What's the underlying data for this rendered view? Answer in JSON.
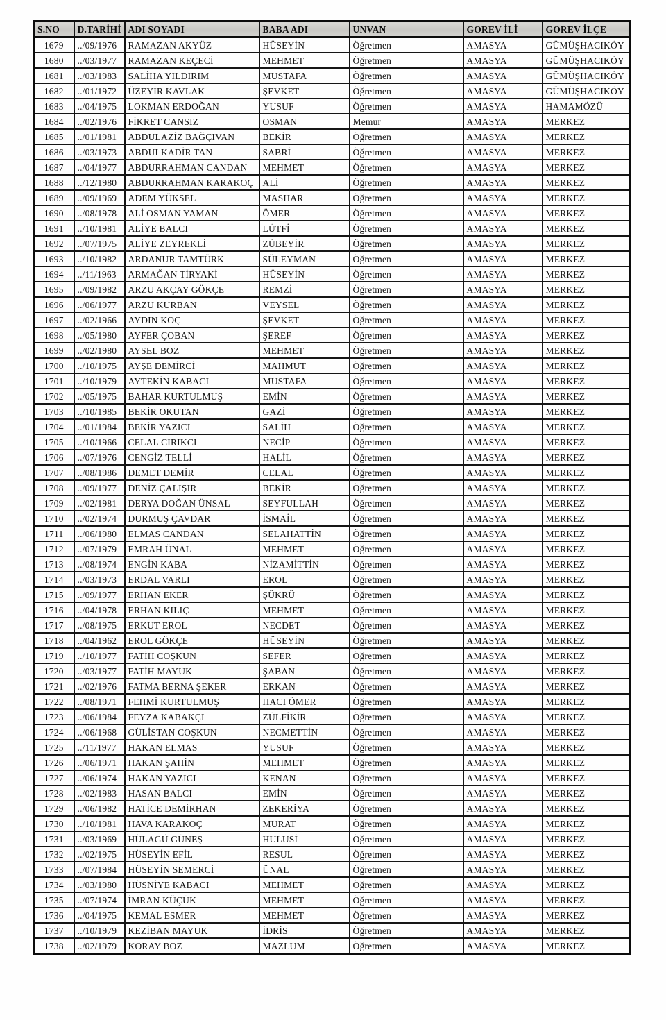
{
  "colors": {
    "ink": "#141414",
    "border": "#151515",
    "header_bg": "#d0cfcb",
    "page_bg": "#fefefe"
  },
  "table": {
    "columns": [
      {
        "key": "sno",
        "label": "S.NO"
      },
      {
        "key": "date",
        "label": "D.TARİHİ"
      },
      {
        "key": "name",
        "label": "ADI SOYADI"
      },
      {
        "key": "father",
        "label": "BABA ADI"
      },
      {
        "key": "title",
        "label": "UNVAN"
      },
      {
        "key": "province",
        "label": "GOREV İLİ"
      },
      {
        "key": "district",
        "label": "GOREV İLÇE"
      }
    ],
    "rows": [
      [
        "1679",
        "../09/1976",
        "RAMAZAN AKYÜZ",
        "HÜSEYİN",
        "Öğretmen",
        "AMASYA",
        "GÜMÜŞHACIKÖY"
      ],
      [
        "1680",
        "../03/1977",
        "RAMAZAN KEÇECİ",
        "MEHMET",
        "Öğretmen",
        "AMASYA",
        "GÜMÜŞHACIKÖY"
      ],
      [
        "1681",
        "../03/1983",
        "SALİHA YILDIRIM",
        "MUSTAFA",
        "Öğretmen",
        "AMASYA",
        "GÜMÜŞHACIKÖY"
      ],
      [
        "1682",
        "../01/1972",
        "ÜZEYİR KAVLAK",
        "ŞEVKET",
        "Öğretmen",
        "AMASYA",
        "GÜMÜŞHACIKÖY"
      ],
      [
        "1683",
        "../04/1975",
        "LOKMAN ERDOĞAN",
        "YUSUF",
        "Öğretmen",
        "AMASYA",
        "HAMAMÖZÜ"
      ],
      [
        "1684",
        "../02/1976",
        "FİKRET CANSIZ",
        "OSMAN",
        "Memur",
        "AMASYA",
        "MERKEZ"
      ],
      [
        "1685",
        "../01/1981",
        "ABDULAZİZ BAĞÇIVAN",
        "BEKİR",
        "Öğretmen",
        "AMASYA",
        "MERKEZ"
      ],
      [
        "1686",
        "../03/1973",
        "ABDULKADİR TAN",
        "SABRİ",
        "Öğretmen",
        "AMASYA",
        "MERKEZ"
      ],
      [
        "1687",
        "../04/1977",
        "ABDURRAHMAN CANDAN",
        "MEHMET",
        "Öğretmen",
        "AMASYA",
        "MERKEZ"
      ],
      [
        "1688",
        "../12/1980",
        "ABDURRAHMAN KARAKOÇ",
        "ALİ",
        "Öğretmen",
        "AMASYA",
        "MERKEZ"
      ],
      [
        "1689",
        "../09/1969",
        "ADEM YÜKSEL",
        "MASHAR",
        "Öğretmen",
        "AMASYA",
        "MERKEZ"
      ],
      [
        "1690",
        "../08/1978",
        "ALİ OSMAN YAMAN",
        "ÖMER",
        "Öğretmen",
        "AMASYA",
        "MERKEZ"
      ],
      [
        "1691",
        "../10/1981",
        "ALİYE BALCI",
        "LÜTFİ",
        "Öğretmen",
        "AMASYA",
        "MERKEZ"
      ],
      [
        "1692",
        "../07/1975",
        "ALİYE ZEYREKLİ",
        "ZÜBEYİR",
        "Öğretmen",
        "AMASYA",
        "MERKEZ"
      ],
      [
        "1693",
        "../10/1982",
        "ARDANUR TAMTÜRK",
        "SÜLEYMAN",
        "Öğretmen",
        "AMASYA",
        "MERKEZ"
      ],
      [
        "1694",
        "../11/1963",
        "ARMAĞAN TİRYAKİ",
        "HÜSEYİN",
        "Öğretmen",
        "AMASYA",
        "MERKEZ"
      ],
      [
        "1695",
        "../09/1982",
        "ARZU AKÇAY GÖKÇE",
        "REMZİ",
        "Öğretmen",
        "AMASYA",
        "MERKEZ"
      ],
      [
        "1696",
        "../06/1977",
        "ARZU KURBAN",
        "VEYSEL",
        "Öğretmen",
        "AMASYA",
        "MERKEZ"
      ],
      [
        "1697",
        "../02/1966",
        "AYDIN KOÇ",
        "ŞEVKET",
        "Öğretmen",
        "AMASYA",
        "MERKEZ"
      ],
      [
        "1698",
        "../05/1980",
        "AYFER ÇOBAN",
        "ŞEREF",
        "Öğretmen",
        "AMASYA",
        "MERKEZ"
      ],
      [
        "1699",
        "../02/1980",
        "AYSEL BOZ",
        "MEHMET",
        "Öğretmen",
        "AMASYA",
        "MERKEZ"
      ],
      [
        "1700",
        "../10/1975",
        "AYŞE DEMİRCİ",
        "MAHMUT",
        "Öğretmen",
        "AMASYA",
        "MERKEZ"
      ],
      [
        "1701",
        "../10/1979",
        "AYTEKİN KABACI",
        "MUSTAFA",
        "Öğretmen",
        "AMASYA",
        "MERKEZ"
      ],
      [
        "1702",
        "../05/1975",
        "BAHAR KURTULMUŞ",
        "EMİN",
        "Öğretmen",
        "AMASYA",
        "MERKEZ"
      ],
      [
        "1703",
        "../10/1985",
        "BEKİR OKUTAN",
        "GAZİ",
        "Öğretmen",
        "AMASYA",
        "MERKEZ"
      ],
      [
        "1704",
        "../01/1984",
        "BEKİR YAZICI",
        "SALİH",
        "Öğretmen",
        "AMASYA",
        "MERKEZ"
      ],
      [
        "1705",
        "../10/1966",
        "CELAL CIRIKCI",
        "NECİP",
        "Öğretmen",
        "AMASYA",
        "MERKEZ"
      ],
      [
        "1706",
        "../07/1976",
        "CENGİZ TELLİ",
        "HALİL",
        "Öğretmen",
        "AMASYA",
        "MERKEZ"
      ],
      [
        "1707",
        "../08/1986",
        "DEMET DEMİR",
        "CELAL",
        "Öğretmen",
        "AMASYA",
        "MERKEZ"
      ],
      [
        "1708",
        "../09/1977",
        "DENİZ ÇALIŞIR",
        "BEKİR",
        "Öğretmen",
        "AMASYA",
        "MERKEZ"
      ],
      [
        "1709",
        "../02/1981",
        "DERYA DOĞAN ÜNSAL",
        "SEYFULLAH",
        "Öğretmen",
        "AMASYA",
        "MERKEZ"
      ],
      [
        "1710",
        "../02/1974",
        "DURMUŞ ÇAVDAR",
        "İSMAİL",
        "Öğretmen",
        "AMASYA",
        "MERKEZ"
      ],
      [
        "1711",
        "../06/1980",
        "ELMAS CANDAN",
        "SELAHATTİN",
        "Öğretmen",
        "AMASYA",
        "MERKEZ"
      ],
      [
        "1712",
        "../07/1979",
        "EMRAH ÜNAL",
        "MEHMET",
        "Öğretmen",
        "AMASYA",
        "MERKEZ"
      ],
      [
        "1713",
        "../08/1974",
        "ENGİN KABA",
        "NİZAMİTTİN",
        "Öğretmen",
        "AMASYA",
        "MERKEZ"
      ],
      [
        "1714",
        "../03/1973",
        "ERDAL VARLI",
        "EROL",
        "Öğretmen",
        "AMASYA",
        "MERKEZ"
      ],
      [
        "1715",
        "../09/1977",
        "ERHAN EKER",
        "ŞÜKRÜ",
        "Öğretmen",
        "AMASYA",
        "MERKEZ"
      ],
      [
        "1716",
        "../04/1978",
        "ERHAN KILIÇ",
        "MEHMET",
        "Öğretmen",
        "AMASYA",
        "MERKEZ"
      ],
      [
        "1717",
        "../08/1975",
        "ERKUT EROL",
        "NECDET",
        "Öğretmen",
        "AMASYA",
        "MERKEZ"
      ],
      [
        "1718",
        "../04/1962",
        "EROL GÖKÇE",
        "HÜSEYİN",
        "Öğretmen",
        "AMASYA",
        "MERKEZ"
      ],
      [
        "1719",
        "../10/1977",
        "FATİH COŞKUN",
        "SEFER",
        "Öğretmen",
        "AMASYA",
        "MERKEZ"
      ],
      [
        "1720",
        "../03/1977",
        "FATİH MAYUK",
        "ŞABAN",
        "Öğretmen",
        "AMASYA",
        "MERKEZ"
      ],
      [
        "1721",
        "../02/1976",
        "FATMA BERNA ŞEKER",
        "ERKAN",
        "Öğretmen",
        "AMASYA",
        "MERKEZ"
      ],
      [
        "1722",
        "../08/1971",
        "FEHMİ KURTULMUŞ",
        "HACI ÖMER",
        "Öğretmen",
        "AMASYA",
        "MERKEZ"
      ],
      [
        "1723",
        "../06/1984",
        "FEYZA KABAKÇI",
        "ZÜLFİKİR",
        "Öğretmen",
        "AMASYA",
        "MERKEZ"
      ],
      [
        "1724",
        "../06/1968",
        "GÜLİSTAN COŞKUN",
        "NECMETTİN",
        "Öğretmen",
        "AMASYA",
        "MERKEZ"
      ],
      [
        "1725",
        "../11/1977",
        "HAKAN ELMAS",
        "YUSUF",
        "Öğretmen",
        "AMASYA",
        "MERKEZ"
      ],
      [
        "1726",
        "../06/1971",
        "HAKAN ŞAHİN",
        "MEHMET",
        "Öğretmen",
        "AMASYA",
        "MERKEZ"
      ],
      [
        "1727",
        "../06/1974",
        "HAKAN YAZICI",
        "KENAN",
        "Öğretmen",
        "AMASYA",
        "MERKEZ"
      ],
      [
        "1728",
        "../02/1983",
        "HASAN BALCI",
        "EMİN",
        "Öğretmen",
        "AMASYA",
        "MERKEZ"
      ],
      [
        "1729",
        "../06/1982",
        "HATİCE DEMİRHAN",
        "ZEKERİYA",
        "Öğretmen",
        "AMASYA",
        "MERKEZ"
      ],
      [
        "1730",
        "../10/1981",
        "HAVA KARAKOÇ",
        "MURAT",
        "Öğretmen",
        "AMASYA",
        "MERKEZ"
      ],
      [
        "1731",
        "../03/1969",
        "HÜLAGÜ GÜNEŞ",
        "HULUSİ",
        "Öğretmen",
        "AMASYA",
        "MERKEZ"
      ],
      [
        "1732",
        "../02/1975",
        "HÜSEYİN EFİL",
        "RESUL",
        "Öğretmen",
        "AMASYA",
        "MERKEZ"
      ],
      [
        "1733",
        "../07/1984",
        "HÜSEYİN SEMERCİ",
        "ÜNAL",
        "Öğretmen",
        "AMASYA",
        "MERKEZ"
      ],
      [
        "1734",
        "../03/1980",
        "HÜSNİYE KABACI",
        "MEHMET",
        "Öğretmen",
        "AMASYA",
        "MERKEZ"
      ],
      [
        "1735",
        "../07/1974",
        "İMRAN KÜÇÜK",
        "MEHMET",
        "Öğretmen",
        "AMASYA",
        "MERKEZ"
      ],
      [
        "1736",
        "../04/1975",
        "KEMAL ESMER",
        "MEHMET",
        "Öğretmen",
        "AMASYA",
        "MERKEZ"
      ],
      [
        "1737",
        "../10/1979",
        "KEZİBAN MAYUK",
        "İDRİS",
        "Öğretmen",
        "AMASYA",
        "MERKEZ"
      ],
      [
        "1738",
        "../02/1979",
        "KORAY BOZ",
        "MAZLUM",
        "Öğretmen",
        "AMASYA",
        "MERKEZ"
      ]
    ]
  }
}
